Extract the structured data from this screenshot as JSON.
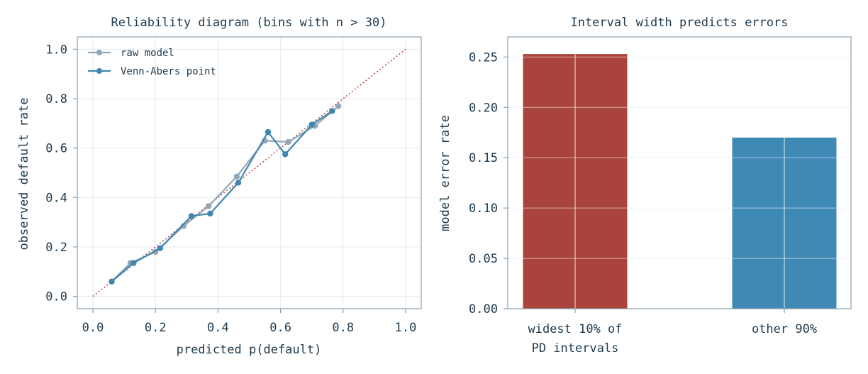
{
  "colors": {
    "raw": "#93a7b5",
    "venn": "#3f86b0",
    "diagonal": "#b5453a",
    "bar_widest": "#a8443b",
    "bar_other": "#3f8ab5",
    "grid": "#e3eaf0",
    "spine": "#8aa0ae",
    "text": "#1f3a4d"
  },
  "chart_data": [
    {
      "type": "line",
      "title": "Reliability diagram (bins with n > 30)",
      "xlabel": "predicted p(default)",
      "ylabel": "observed default rate",
      "xlim": [
        -0.05,
        1.05
      ],
      "ylim": [
        -0.05,
        1.05
      ],
      "xticks": [
        "0.0",
        "0.2",
        "0.4",
        "0.6",
        "0.8",
        "1.0"
      ],
      "yticks": [
        "0.0",
        "0.2",
        "0.4",
        "0.6",
        "0.8",
        "1.0"
      ],
      "grid": true,
      "legend_position": "top-left",
      "diagonal": [
        [
          0,
          0
        ],
        [
          1,
          1
        ]
      ],
      "series": [
        {
          "name": "raw model",
          "x": [
            0.06,
            0.12,
            0.2,
            0.29,
            0.37,
            0.46,
            0.55,
            0.625,
            0.71,
            0.785
          ],
          "y": [
            0.06,
            0.135,
            0.18,
            0.285,
            0.365,
            0.485,
            0.63,
            0.625,
            0.69,
            0.77
          ]
        },
        {
          "name": "Venn-Abers point",
          "x": [
            0.06,
            0.13,
            0.215,
            0.315,
            0.375,
            0.465,
            0.56,
            0.615,
            0.7,
            0.765
          ],
          "y": [
            0.06,
            0.135,
            0.195,
            0.325,
            0.335,
            0.46,
            0.665,
            0.575,
            0.695,
            0.75
          ]
        }
      ]
    },
    {
      "type": "bar",
      "title": "Interval width predicts errors",
      "xlabel": "",
      "ylabel": "model error rate",
      "ylim": [
        0,
        0.27
      ],
      "yticks": [
        "0.00",
        "0.05",
        "0.10",
        "0.15",
        "0.20",
        "0.25"
      ],
      "grid": true,
      "categories": [
        [
          "widest 10% of",
          "PD intervals"
        ],
        [
          "other 90%"
        ]
      ],
      "values": [
        0.253,
        0.17
      ]
    }
  ]
}
